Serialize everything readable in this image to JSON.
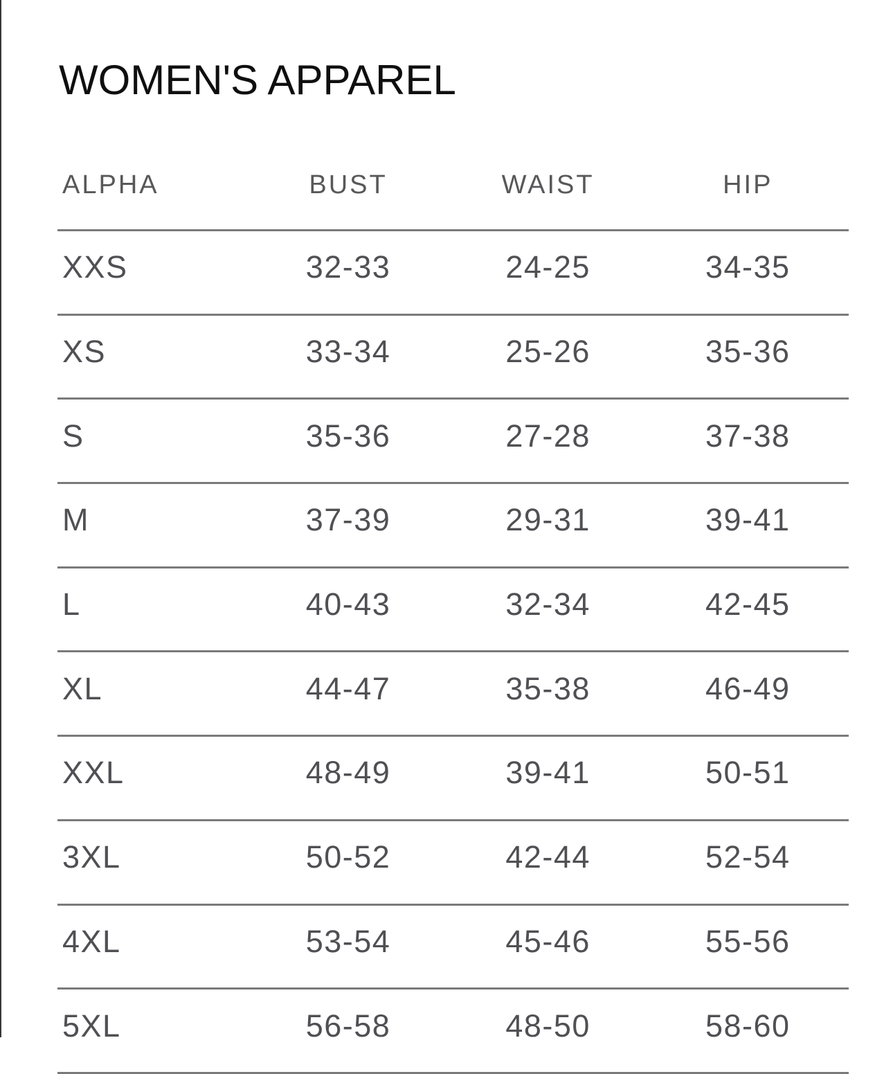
{
  "page": {
    "title": "WOMEN'S APPAREL"
  },
  "table": {
    "columns": [
      "ALPHA",
      "BUST",
      "WAIST",
      "HIP"
    ],
    "rows": [
      {
        "alpha": "XXS",
        "bust": "32-33",
        "waist": "24-25",
        "hip": "34-35"
      },
      {
        "alpha": "XS",
        "bust": "33-34",
        "waist": "25-26",
        "hip": "35-36"
      },
      {
        "alpha": "S",
        "bust": "35-36",
        "waist": "27-28",
        "hip": "37-38"
      },
      {
        "alpha": "M",
        "bust": "37-39",
        "waist": "29-31",
        "hip": "39-41"
      },
      {
        "alpha": "L",
        "bust": "40-43",
        "waist": "32-34",
        "hip": "42-45"
      },
      {
        "alpha": "XL",
        "bust": "44-47",
        "waist": "35-38",
        "hip": "46-49"
      },
      {
        "alpha": "XXL",
        "bust": "48-49",
        "waist": "39-41",
        "hip": "50-51"
      },
      {
        "alpha": "3XL",
        "bust": "50-52",
        "waist": "42-44",
        "hip": "52-54"
      },
      {
        "alpha": "4XL",
        "bust": "53-54",
        "waist": "45-46",
        "hip": "55-56"
      },
      {
        "alpha": "5XL",
        "bust": "56-58",
        "waist": "48-50",
        "hip": "58-60"
      }
    ]
  },
  "colors": {
    "title_text": "#0f0f0f",
    "header_text": "#58585a",
    "cell_text": "#505054",
    "rule_line": "#7a7a7a",
    "page_edge": "#383838",
    "background": "#ffffff"
  }
}
